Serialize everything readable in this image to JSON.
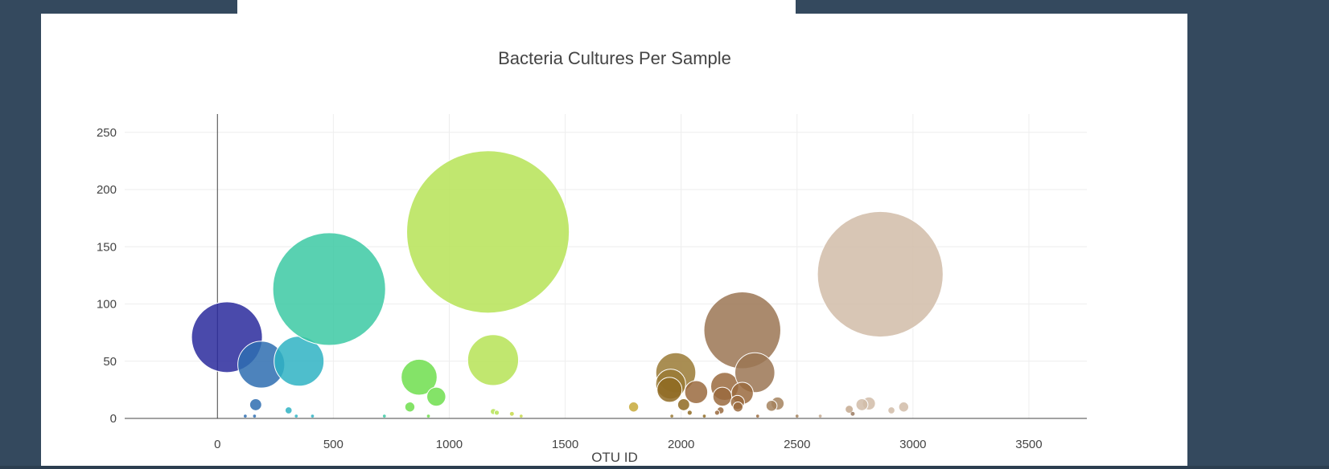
{
  "chart_data": {
    "type": "scatter",
    "title": "Bacteria Cultures Per Sample",
    "xlabel": "OTU ID",
    "ylabel": "",
    "xlim": [
      -400,
      3750
    ],
    "ylim": [
      0,
      266
    ],
    "xticks": [
      0,
      500,
      1000,
      1500,
      2000,
      2500,
      3000,
      3500
    ],
    "yticks": [
      0,
      50,
      100,
      150,
      200,
      250
    ],
    "grid": true,
    "legend": "none",
    "points": [
      {
        "x": 41,
        "y": 71,
        "size": 71,
        "color": "#2a2a9c"
      },
      {
        "x": 189,
        "y": 47,
        "size": 47,
        "color": "#2e6db0"
      },
      {
        "x": 352,
        "y": 50,
        "size": 50,
        "color": "#2fb3c3"
      },
      {
        "x": 482,
        "y": 113,
        "size": 113,
        "color": "#3cc9a3"
      },
      {
        "x": 870,
        "y": 36,
        "size": 36,
        "color": "#6fde4e"
      },
      {
        "x": 944,
        "y": 19,
        "size": 19,
        "color": "#6fde4e"
      },
      {
        "x": 1167,
        "y": 163,
        "size": 163,
        "color": "#b6e356"
      },
      {
        "x": 1189,
        "y": 51,
        "size": 51,
        "color": "#b6e356"
      },
      {
        "x": 1977,
        "y": 40,
        "size": 40,
        "color": "#9a7a35"
      },
      {
        "x": 1955,
        "y": 30,
        "size": 30,
        "color": "#9a7a35"
      },
      {
        "x": 1950,
        "y": 25,
        "size": 25,
        "color": "#8f6a22"
      },
      {
        "x": 2011,
        "y": 12,
        "size": 12,
        "color": "#8f6a22"
      },
      {
        "x": 2065,
        "y": 23,
        "size": 23,
        "color": "#9a6a3e"
      },
      {
        "x": 2188,
        "y": 28,
        "size": 28,
        "color": "#9a6a3e"
      },
      {
        "x": 2178,
        "y": 19,
        "size": 19,
        "color": "#9a6a3e"
      },
      {
        "x": 2264,
        "y": 77,
        "size": 77,
        "color": "#9b7553"
      },
      {
        "x": 2318,
        "y": 40,
        "size": 40,
        "color": "#9b7553"
      },
      {
        "x": 2264,
        "y": 22,
        "size": 22,
        "color": "#9a6a3e"
      },
      {
        "x": 2243,
        "y": 14,
        "size": 14,
        "color": "#9a6a3e"
      },
      {
        "x": 2416,
        "y": 13,
        "size": 13,
        "color": "#a5825e"
      },
      {
        "x": 2390,
        "y": 11,
        "size": 11,
        "color": "#a5825e"
      },
      {
        "x": 2859,
        "y": 126,
        "size": 126,
        "color": "#d1bca8"
      },
      {
        "x": 2810,
        "y": 13,
        "size": 13,
        "color": "#d1bca8"
      },
      {
        "x": 2780,
        "y": 12,
        "size": 12,
        "color": "#d1bca8"
      },
      {
        "x": 2960,
        "y": 10,
        "size": 10,
        "color": "#d1bca8"
      },
      {
        "x": 2725,
        "y": 8,
        "size": 8,
        "color": "#c4a98f"
      },
      {
        "x": 2907,
        "y": 7,
        "size": 7,
        "color": "#d1bca8"
      },
      {
        "x": 165,
        "y": 12,
        "size": 12,
        "color": "#2e6db0"
      },
      {
        "x": 307,
        "y": 7,
        "size": 7,
        "color": "#2fb3c3"
      },
      {
        "x": 830,
        "y": 10,
        "size": 10,
        "color": "#6fde4e"
      },
      {
        "x": 1795,
        "y": 10,
        "size": 10,
        "color": "#c7a93a"
      },
      {
        "x": 1190,
        "y": 6,
        "size": 6,
        "color": "#b6e356"
      },
      {
        "x": 1205,
        "y": 5,
        "size": 5,
        "color": "#b6e356"
      },
      {
        "x": 1270,
        "y": 4,
        "size": 4,
        "color": "#c7d94a"
      },
      {
        "x": 2170,
        "y": 7,
        "size": 7,
        "color": "#9a6a3e"
      },
      {
        "x": 2155,
        "y": 5,
        "size": 5,
        "color": "#9a6a3e"
      },
      {
        "x": 2245,
        "y": 10,
        "size": 10,
        "color": "#9a6a3e"
      },
      {
        "x": 2037,
        "y": 5,
        "size": 5,
        "color": "#8f6a22"
      },
      {
        "x": 2740,
        "y": 4,
        "size": 4,
        "color": "#9a7a60"
      },
      {
        "x": 120,
        "y": 2,
        "size": 3,
        "color": "#2e6db0"
      },
      {
        "x": 160,
        "y": 2,
        "size": 3,
        "color": "#2e6db0"
      },
      {
        "x": 340,
        "y": 2,
        "size": 3,
        "color": "#2fb3c3"
      },
      {
        "x": 410,
        "y": 2,
        "size": 3,
        "color": "#2fb3c3"
      },
      {
        "x": 720,
        "y": 2,
        "size": 3,
        "color": "#3cc9a3"
      },
      {
        "x": 910,
        "y": 2,
        "size": 3,
        "color": "#6fde4e"
      },
      {
        "x": 1310,
        "y": 2,
        "size": 3,
        "color": "#c7d94a"
      },
      {
        "x": 1960,
        "y": 2,
        "size": 3,
        "color": "#9a7a35"
      },
      {
        "x": 2100,
        "y": 2,
        "size": 3,
        "color": "#8f6a22"
      },
      {
        "x": 2330,
        "y": 2,
        "size": 3,
        "color": "#9a6a3e"
      },
      {
        "x": 2500,
        "y": 2,
        "size": 3,
        "color": "#a5825e"
      },
      {
        "x": 2600,
        "y": 2,
        "size": 3,
        "color": "#c4a98f"
      }
    ]
  }
}
